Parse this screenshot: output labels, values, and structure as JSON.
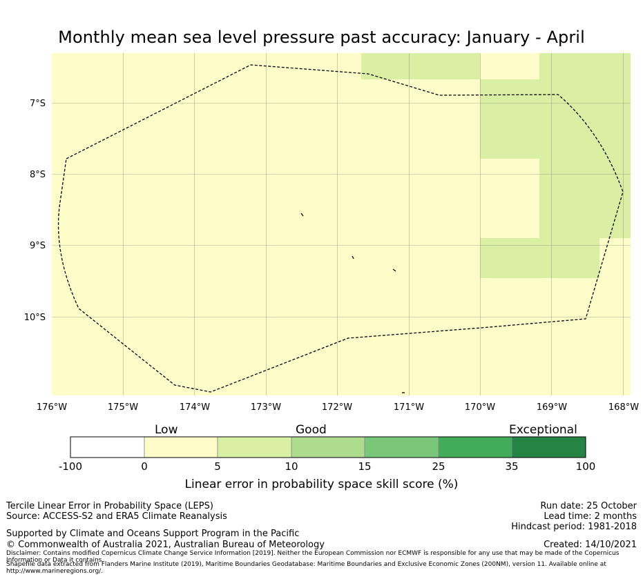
{
  "title": "Monthly mean sea level pressure past accuracy: January - April",
  "map": {
    "x_ticks": [
      "176°W",
      "175°W",
      "174°W",
      "173°W",
      "172°W",
      "171°W",
      "170°W",
      "169°W",
      "168°W"
    ],
    "y_ticks": [
      "7°S",
      "8°S",
      "9°S",
      "10°S"
    ],
    "background_color": "#fefdca",
    "green_color": "#d9efa3",
    "grid_color": "#8a8a73"
  },
  "colorbar": {
    "categories": {
      "low": "Low",
      "good": "Good",
      "exceptional": "Exceptional"
    },
    "ticks": [
      "-100",
      "0",
      "5",
      "10",
      "15",
      "25",
      "35",
      "100"
    ],
    "colors": [
      "#ffffff",
      "#fefdca",
      "#d9efa3",
      "#aedc8f",
      "#7bc779",
      "#41ad5a",
      "#238443"
    ],
    "label": "Linear error in probability space skill score (%)"
  },
  "footer": {
    "method": "Tercile Linear Error in Probability Space (LEPS)",
    "source": "Source: ACCESS-S2 and ERA5 Climate Reanalysis",
    "support": "Supported by Climate and Oceans Support Program in the Pacific",
    "copyright": "© Commonwealth of Australia 2021, Australian Bureau of Meteorology",
    "disclaimer": "Disclaimer: Contains modified Copernicus Climate Change Service Information [2019]. Neither the European Commission nor ECMWF is responsible for any use that may be made of the Copernicus Information or Data it contains.",
    "shapefile": "Shapefile data extracted from Flanders Marine Institute (2019), Maritime Boundaries Geodatabase: Maritime Boundaries and Exclusive Economic Zones (200NM), version 11. Available online at http://www.marineregions.org/.",
    "run_date": "Run date: 25 October",
    "lead_time": "Lead time: 2 months",
    "hindcast": "Hindcast period: 1981-2018",
    "created": "Created: 14/10/2021"
  }
}
